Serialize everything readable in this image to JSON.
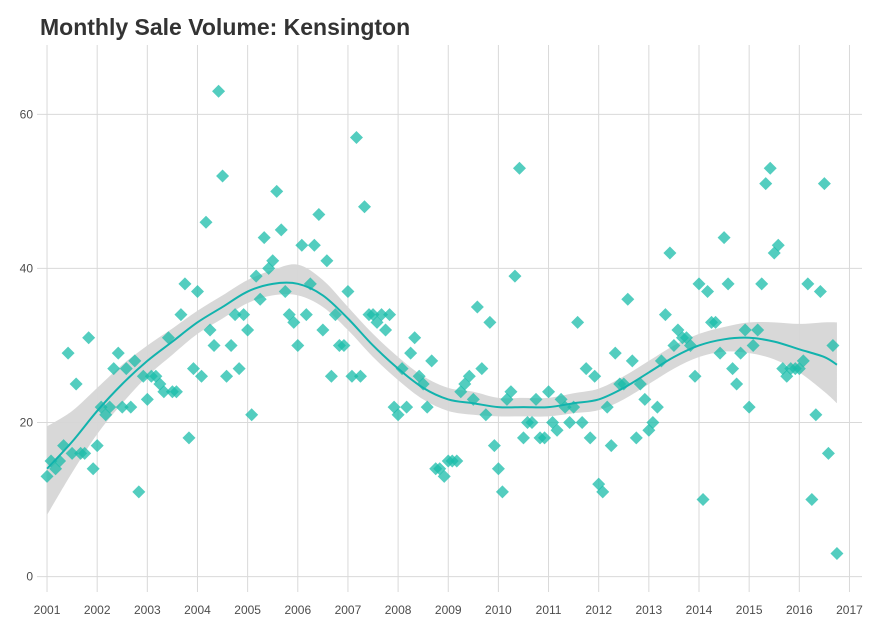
{
  "chart_data": {
    "type": "scatter",
    "title": "Monthly Sale Volume: Kensington",
    "xlabel": "",
    "ylabel": "",
    "xlim": [
      2000.8,
      2017.25
    ],
    "ylim": [
      -2,
      69
    ],
    "x_ticks": [
      2001,
      2002,
      2003,
      2004,
      2005,
      2006,
      2007,
      2008,
      2009,
      2010,
      2011,
      2012,
      2013,
      2014,
      2015,
      2016,
      2017
    ],
    "x_tick_labels": [
      "2001",
      "2002",
      "2003",
      "2004",
      "2005",
      "2006",
      "2007",
      "2008",
      "2009",
      "2010",
      "2011",
      "2012",
      "2013",
      "2014",
      "2015",
      "2016",
      "2017"
    ],
    "y_ticks": [
      0,
      20,
      40,
      60
    ],
    "y_tick_labels": [
      "0",
      "20",
      "40",
      "60"
    ],
    "grid": true,
    "legend": "none",
    "colors": {
      "points": "#1ABCAA",
      "trend": "#12B3AD",
      "band": "#D6D6D6",
      "grid": "#D9D9D9"
    },
    "series": [
      {
        "type": "scatter",
        "points": [
          [
            2001.0,
            13
          ],
          [
            2001.08,
            15
          ],
          [
            2001.17,
            14
          ],
          [
            2001.25,
            15
          ],
          [
            2001.33,
            17
          ],
          [
            2001.42,
            29
          ],
          [
            2001.5,
            16
          ],
          [
            2001.58,
            25
          ],
          [
            2001.67,
            16
          ],
          [
            2001.75,
            16
          ],
          [
            2001.83,
            31
          ],
          [
            2001.92,
            14
          ],
          [
            2002.0,
            17
          ],
          [
            2002.08,
            22
          ],
          [
            2002.17,
            21
          ],
          [
            2002.25,
            22
          ],
          [
            2002.33,
            27
          ],
          [
            2002.42,
            29
          ],
          [
            2002.5,
            22
          ],
          [
            2002.58,
            27
          ],
          [
            2002.67,
            22
          ],
          [
            2002.75,
            28
          ],
          [
            2002.83,
            11
          ],
          [
            2002.92,
            26
          ],
          [
            2003.0,
            23
          ],
          [
            2003.08,
            26
          ],
          [
            2003.17,
            26
          ],
          [
            2003.25,
            25
          ],
          [
            2003.33,
            24
          ],
          [
            2003.42,
            31
          ],
          [
            2003.5,
            24
          ],
          [
            2003.58,
            24
          ],
          [
            2003.67,
            34
          ],
          [
            2003.75,
            38
          ],
          [
            2003.83,
            18
          ],
          [
            2003.92,
            27
          ],
          [
            2004.0,
            37
          ],
          [
            2004.08,
            26
          ],
          [
            2004.17,
            46
          ],
          [
            2004.25,
            32
          ],
          [
            2004.33,
            30
          ],
          [
            2004.42,
            63
          ],
          [
            2004.5,
            52
          ],
          [
            2004.58,
            26
          ],
          [
            2004.67,
            30
          ],
          [
            2004.75,
            34
          ],
          [
            2004.83,
            27
          ],
          [
            2004.92,
            34
          ],
          [
            2005.0,
            32
          ],
          [
            2005.08,
            21
          ],
          [
            2005.17,
            39
          ],
          [
            2005.25,
            36
          ],
          [
            2005.33,
            44
          ],
          [
            2005.42,
            40
          ],
          [
            2005.5,
            41
          ],
          [
            2005.58,
            50
          ],
          [
            2005.67,
            45
          ],
          [
            2005.75,
            37
          ],
          [
            2005.83,
            34
          ],
          [
            2005.92,
            33
          ],
          [
            2006.0,
            30
          ],
          [
            2006.08,
            43
          ],
          [
            2006.17,
            34
          ],
          [
            2006.25,
            38
          ],
          [
            2006.33,
            43
          ],
          [
            2006.42,
            47
          ],
          [
            2006.5,
            32
          ],
          [
            2006.58,
            41
          ],
          [
            2006.67,
            26
          ],
          [
            2006.75,
            34
          ],
          [
            2006.83,
            30
          ],
          [
            2006.92,
            30
          ],
          [
            2007.0,
            37
          ],
          [
            2007.08,
            26
          ],
          [
            2007.17,
            57
          ],
          [
            2007.25,
            26
          ],
          [
            2007.33,
            48
          ],
          [
            2007.42,
            34
          ],
          [
            2007.5,
            34
          ],
          [
            2007.58,
            33
          ],
          [
            2007.67,
            34
          ],
          [
            2007.75,
            32
          ],
          [
            2007.83,
            34
          ],
          [
            2007.92,
            22
          ],
          [
            2008.0,
            21
          ],
          [
            2008.08,
            27
          ],
          [
            2008.17,
            22
          ],
          [
            2008.25,
            29
          ],
          [
            2008.33,
            31
          ],
          [
            2008.42,
            26
          ],
          [
            2008.5,
            25
          ],
          [
            2008.58,
            22
          ],
          [
            2008.67,
            28
          ],
          [
            2008.75,
            14
          ],
          [
            2008.83,
            14
          ],
          [
            2008.92,
            13
          ],
          [
            2009.0,
            15
          ],
          [
            2009.08,
            15
          ],
          [
            2009.17,
            15
          ],
          [
            2009.25,
            24
          ],
          [
            2009.33,
            25
          ],
          [
            2009.42,
            26
          ],
          [
            2009.5,
            23
          ],
          [
            2009.58,
            35
          ],
          [
            2009.67,
            27
          ],
          [
            2009.75,
            21
          ],
          [
            2009.83,
            33
          ],
          [
            2009.92,
            17
          ],
          [
            2010.0,
            14
          ],
          [
            2010.08,
            11
          ],
          [
            2010.17,
            23
          ],
          [
            2010.25,
            24
          ],
          [
            2010.33,
            39
          ],
          [
            2010.42,
            53
          ],
          [
            2010.5,
            18
          ],
          [
            2010.58,
            20
          ],
          [
            2010.67,
            20
          ],
          [
            2010.75,
            23
          ],
          [
            2010.83,
            18
          ],
          [
            2010.92,
            18
          ],
          [
            2011.0,
            24
          ],
          [
            2011.08,
            20
          ],
          [
            2011.17,
            19
          ],
          [
            2011.25,
            23
          ],
          [
            2011.33,
            22
          ],
          [
            2011.42,
            20
          ],
          [
            2011.5,
            22
          ],
          [
            2011.58,
            33
          ],
          [
            2011.67,
            20
          ],
          [
            2011.75,
            27
          ],
          [
            2011.83,
            18
          ],
          [
            2011.92,
            26
          ],
          [
            2012.0,
            12
          ],
          [
            2012.08,
            11
          ],
          [
            2012.17,
            22
          ],
          [
            2012.25,
            17
          ],
          [
            2012.33,
            29
          ],
          [
            2012.42,
            25
          ],
          [
            2012.5,
            25
          ],
          [
            2012.58,
            36
          ],
          [
            2012.67,
            28
          ],
          [
            2012.75,
            18
          ],
          [
            2012.83,
            25
          ],
          [
            2012.92,
            23
          ],
          [
            2013.0,
            19
          ],
          [
            2013.08,
            20
          ],
          [
            2013.17,
            22
          ],
          [
            2013.25,
            28
          ],
          [
            2013.33,
            34
          ],
          [
            2013.42,
            42
          ],
          [
            2013.5,
            30
          ],
          [
            2013.58,
            32
          ],
          [
            2013.67,
            31
          ],
          [
            2013.75,
            31
          ],
          [
            2013.83,
            30
          ],
          [
            2013.92,
            26
          ],
          [
            2014.0,
            38
          ],
          [
            2014.08,
            10
          ],
          [
            2014.17,
            37
          ],
          [
            2014.25,
            33
          ],
          [
            2014.33,
            33
          ],
          [
            2014.42,
            29
          ],
          [
            2014.5,
            44
          ],
          [
            2014.58,
            38
          ],
          [
            2014.67,
            27
          ],
          [
            2014.75,
            25
          ],
          [
            2014.83,
            29
          ],
          [
            2014.92,
            32
          ],
          [
            2015.0,
            22
          ],
          [
            2015.08,
            30
          ],
          [
            2015.17,
            32
          ],
          [
            2015.25,
            38
          ],
          [
            2015.33,
            51
          ],
          [
            2015.42,
            53
          ],
          [
            2015.5,
            42
          ],
          [
            2015.58,
            43
          ],
          [
            2015.67,
            27
          ],
          [
            2015.75,
            26
          ],
          [
            2015.83,
            27
          ],
          [
            2015.92,
            27
          ],
          [
            2016.0,
            27
          ],
          [
            2016.08,
            28
          ],
          [
            2016.17,
            38
          ],
          [
            2016.25,
            10
          ],
          [
            2016.33,
            21
          ],
          [
            2016.42,
            37
          ],
          [
            2016.5,
            51
          ],
          [
            2016.58,
            16
          ],
          [
            2016.67,
            30
          ],
          [
            2016.75,
            3
          ]
        ]
      },
      {
        "type": "line",
        "style": "smooth trend with confidence band",
        "x": [
          2001,
          2001.5,
          2002,
          2002.5,
          2003,
          2003.5,
          2004,
          2004.5,
          2005,
          2005.5,
          2006,
          2006.5,
          2007,
          2007.5,
          2008,
          2008.5,
          2009,
          2009.5,
          2010,
          2010.5,
          2011,
          2011.5,
          2012,
          2012.5,
          2013,
          2013.5,
          2014,
          2014.5,
          2015,
          2015.5,
          2016,
          2016.5,
          2016.75
        ],
        "y": [
          14,
          17.5,
          21.5,
          25,
          28,
          30.5,
          33,
          35,
          37,
          38,
          38,
          36.5,
          33.5,
          30,
          27,
          24.5,
          23,
          22.5,
          22,
          22,
          22,
          22.5,
          23,
          24.5,
          26.5,
          28.5,
          30,
          30.8,
          31,
          30.5,
          29.5,
          28.5,
          27.5
        ],
        "lower": [
          8,
          13.5,
          18.5,
          22.5,
          26,
          28.8,
          31.5,
          33.5,
          35.5,
          36.5,
          36.5,
          35,
          32,
          28.5,
          25.5,
          23,
          21.5,
          21,
          20.8,
          20.8,
          20.8,
          21.2,
          21.6,
          23,
          25,
          27,
          28.5,
          29.2,
          29,
          28.2,
          26.5,
          24,
          22.5
        ],
        "upper": [
          19.5,
          21.5,
          24.5,
          27.5,
          30,
          32.2,
          34.5,
          36.5,
          38.5,
          39.8,
          40.5,
          38.5,
          35,
          31.5,
          28.5,
          26,
          24.5,
          24,
          23.2,
          23.2,
          23.2,
          23.8,
          24.4,
          26,
          28,
          30,
          31.5,
          32.4,
          33,
          33,
          32.8,
          33,
          33
        ]
      }
    ]
  }
}
